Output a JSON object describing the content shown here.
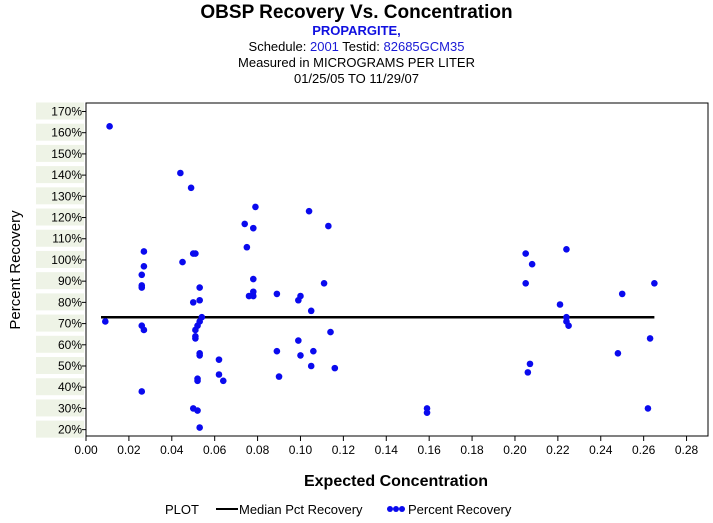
{
  "header": {
    "title": "OBSP Recovery Vs. Concentration",
    "subtitle": "PROPARGITE,",
    "schedule_label": "Schedule:",
    "schedule_value": "2001",
    "testid_label": "Testid:",
    "testid_value": "82685GCM35",
    "measured": "Measured in  MICROGRAMS PER LITER",
    "date_range": "01/25/05 TO 11/29/07"
  },
  "legend": {
    "plot_label": "PLOT",
    "median_label": "Median Pct Recovery",
    "points_label": "Percent Recovery"
  },
  "colors": {
    "points": "#0a0aee",
    "median_line": "#000000",
    "band": "#eef3e6"
  },
  "chart_data": {
    "type": "scatter",
    "xlabel": "Expected Concentration",
    "ylabel": "Percent Recovery",
    "xlim": [
      0.0,
      0.29
    ],
    "ylim": [
      17,
      174
    ],
    "xticks": [
      "0.00",
      "0.02",
      "0.04",
      "0.06",
      "0.08",
      "0.10",
      "0.12",
      "0.14",
      "0.16",
      "0.18",
      "0.20",
      "0.22",
      "0.24",
      "0.26",
      "0.28"
    ],
    "yticks": [
      "20%",
      "30%",
      "40%",
      "50%",
      "60%",
      "70%",
      "80%",
      "90%",
      "100%",
      "110%",
      "120%",
      "130%",
      "140%",
      "150%",
      "160%",
      "170%"
    ],
    "median": {
      "value": 73,
      "x_range": [
        0.007,
        0.265
      ]
    },
    "series": [
      {
        "name": "Percent Recovery",
        "points": [
          [
            0.009,
            71
          ],
          [
            0.011,
            163
          ],
          [
            0.026,
            93
          ],
          [
            0.026,
            88
          ],
          [
            0.026,
            87
          ],
          [
            0.026,
            69
          ],
          [
            0.026,
            38
          ],
          [
            0.027,
            104
          ],
          [
            0.027,
            97
          ],
          [
            0.027,
            67
          ],
          [
            0.044,
            141
          ],
          [
            0.045,
            99
          ],
          [
            0.049,
            134
          ],
          [
            0.05,
            103
          ],
          [
            0.05,
            30
          ],
          [
            0.05,
            80
          ],
          [
            0.051,
            103
          ],
          [
            0.051,
            67
          ],
          [
            0.051,
            63
          ],
          [
            0.051,
            64
          ],
          [
            0.052,
            69
          ],
          [
            0.052,
            44
          ],
          [
            0.052,
            43
          ],
          [
            0.052,
            29
          ],
          [
            0.053,
            87
          ],
          [
            0.053,
            81
          ],
          [
            0.053,
            71
          ],
          [
            0.053,
            56
          ],
          [
            0.053,
            55
          ],
          [
            0.053,
            21
          ],
          [
            0.054,
            73
          ],
          [
            0.062,
            53
          ],
          [
            0.062,
            46
          ],
          [
            0.064,
            43
          ],
          [
            0.074,
            117
          ],
          [
            0.075,
            106
          ],
          [
            0.076,
            83
          ],
          [
            0.078,
            115
          ],
          [
            0.078,
            85
          ],
          [
            0.078,
            83
          ],
          [
            0.078,
            91
          ],
          [
            0.079,
            125
          ],
          [
            0.089,
            84
          ],
          [
            0.089,
            57
          ],
          [
            0.09,
            45
          ],
          [
            0.099,
            81
          ],
          [
            0.099,
            62
          ],
          [
            0.1,
            83
          ],
          [
            0.1,
            55
          ],
          [
            0.104,
            123
          ],
          [
            0.105,
            76
          ],
          [
            0.105,
            50
          ],
          [
            0.106,
            57
          ],
          [
            0.111,
            89
          ],
          [
            0.113,
            116
          ],
          [
            0.114,
            66
          ],
          [
            0.116,
            49
          ],
          [
            0.159,
            30
          ],
          [
            0.159,
            28
          ],
          [
            0.205,
            103
          ],
          [
            0.205,
            89
          ],
          [
            0.206,
            47
          ],
          [
            0.207,
            51
          ],
          [
            0.208,
            98
          ],
          [
            0.221,
            79
          ],
          [
            0.224,
            105
          ],
          [
            0.224,
            73
          ],
          [
            0.224,
            71
          ],
          [
            0.225,
            69
          ],
          [
            0.248,
            56
          ],
          [
            0.25,
            84
          ],
          [
            0.262,
            30
          ],
          [
            0.263,
            63
          ],
          [
            0.265,
            89
          ]
        ]
      }
    ]
  }
}
